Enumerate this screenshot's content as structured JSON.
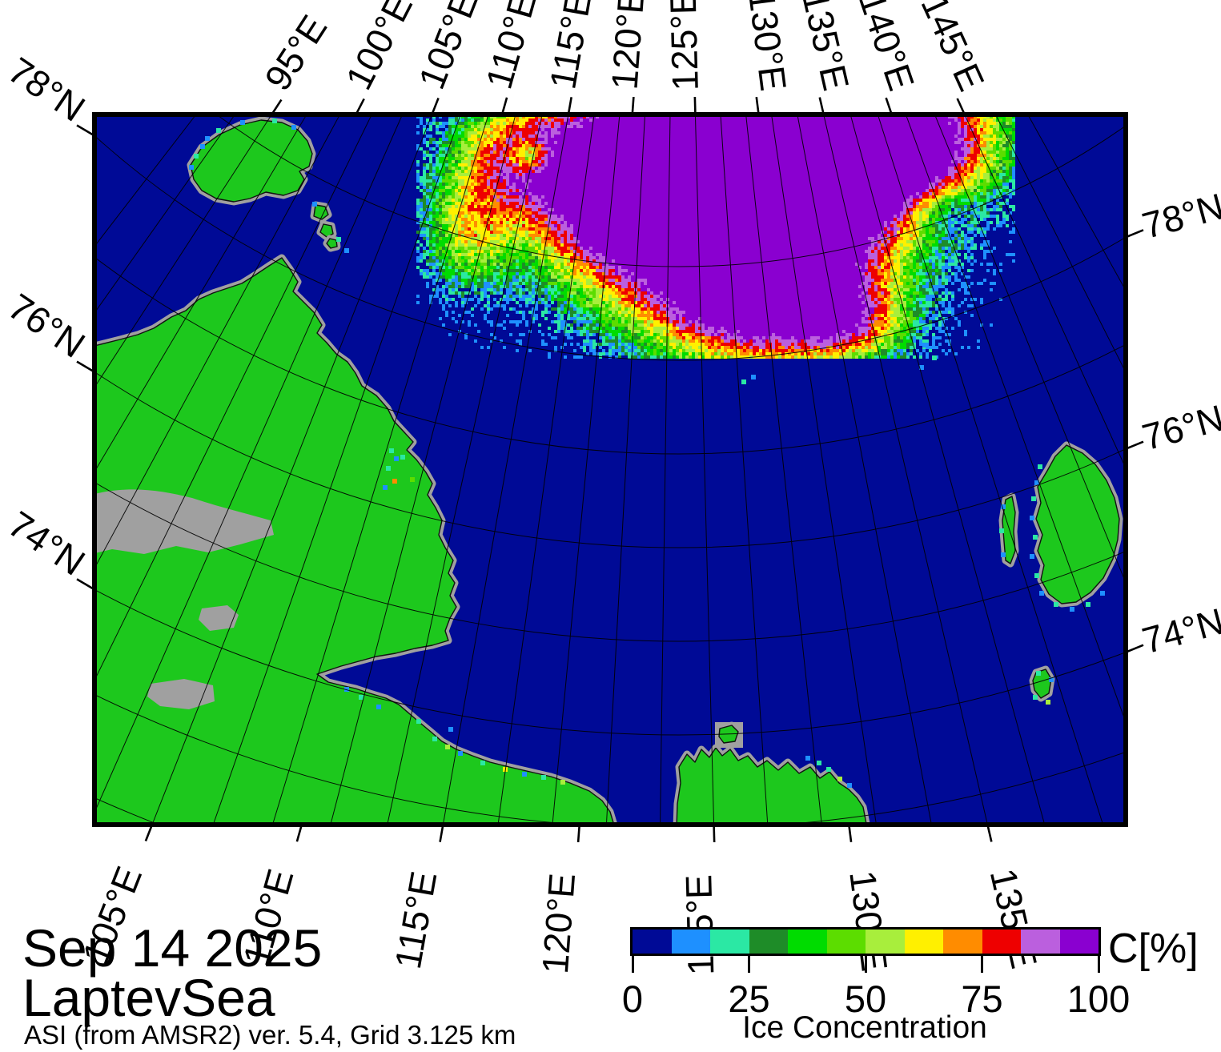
{
  "title": {
    "date": "Sep 14 2025",
    "region": "LaptevSea",
    "source": "ASI (from AMSR2) ver. 5.4,  Grid 3.125 km"
  },
  "axes": {
    "top_labels": [
      "95°E",
      "100°E",
      "105°E",
      "110°E",
      "115°E",
      "120°E",
      "125°E",
      "130°E",
      "135°E",
      "140°E",
      "145°E"
    ],
    "bottom_labels": [
      "105°E",
      "110°E",
      "115°E",
      "120°E",
      "125°E",
      "130°E",
      "135°E"
    ],
    "left_labels": [
      "78°N",
      "76°N",
      "74°N"
    ],
    "right_labels": [
      "78°N",
      "76°N",
      "74°N"
    ]
  },
  "colorbar": {
    "unit": "C[%]",
    "label": "Ice Concentration",
    "ticks": [
      "0",
      "25",
      "50",
      "75",
      "100"
    ],
    "tick_values": [
      0,
      25,
      50,
      75,
      100
    ],
    "palette": [
      "#000A96",
      "#1E90FF",
      "#2BE8A4",
      "#1E8C28",
      "#00DC00",
      "#5CDD00",
      "#A8EE3C",
      "#FFF000",
      "#FF8C00",
      "#EE0000",
      "#BB5FDE",
      "#8A00D0"
    ]
  },
  "map": {
    "ocean_color": "#000A96",
    "land_color": "#1DC81D",
    "coast_buffer_color": "#A0A0A0",
    "coastline_color": "#111111",
    "graticule_color": "#000000"
  }
}
